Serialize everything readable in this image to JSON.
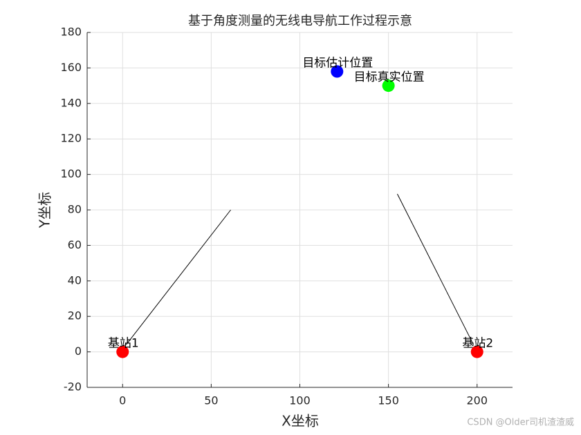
{
  "chart_data": {
    "type": "scatter",
    "title": "基于角度测量的无线电导航工作过程示意",
    "xlabel": "X坐标",
    "ylabel": "Y坐标",
    "xlim": [
      -20,
      220
    ],
    "xticks": [
      0,
      50,
      100,
      150,
      200
    ],
    "ylim": [
      -20,
      180
    ],
    "yticks": [
      -20,
      0,
      20,
      40,
      60,
      80,
      100,
      120,
      140,
      160,
      180
    ],
    "grid": true,
    "points": [
      {
        "label": "基站1",
        "x": 0,
        "y": 0,
        "color": "#ff0000"
      },
      {
        "label": "基站2",
        "x": 200,
        "y": 0,
        "color": "#ff0000"
      },
      {
        "label": "目标估计位置",
        "x": 121,
        "y": 158,
        "color": "#0000ff"
      },
      {
        "label": "目标真实位置",
        "x": 150,
        "y": 150,
        "color": "#00ff00"
      }
    ],
    "lines": [
      {
        "x": [
          2,
          61
        ],
        "y": [
          4,
          80
        ],
        "color": "#000000"
      },
      {
        "x": [
          155,
          198
        ],
        "y": [
          89,
          4
        ],
        "color": "#000000"
      }
    ]
  },
  "watermark": "CSDN @Older司机渣渣威"
}
